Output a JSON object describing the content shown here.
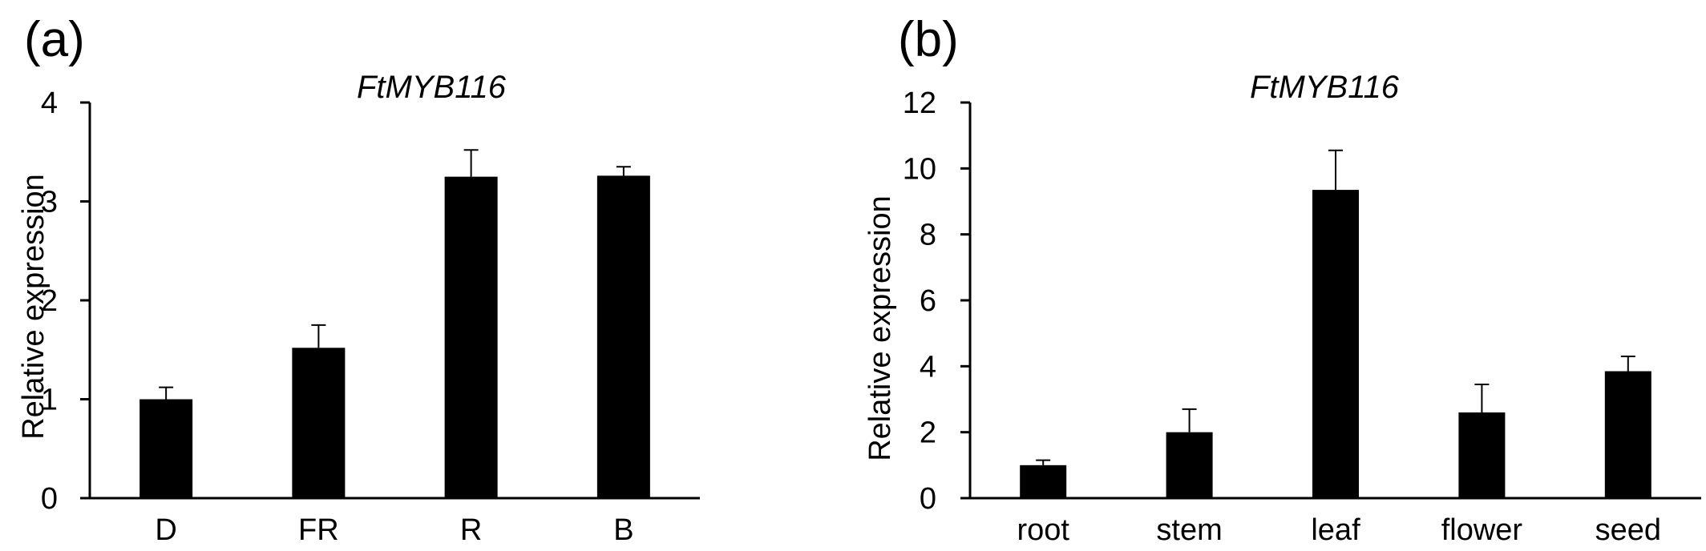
{
  "chart_data": [
    {
      "panel": "(a)",
      "type": "bar",
      "title": "FtMYB116",
      "xlabel": "",
      "ylabel": "Relative expression",
      "categories": [
        "D",
        "FR",
        "R",
        "B"
      ],
      "values": [
        1.0,
        1.52,
        3.25,
        3.26
      ],
      "errors": [
        0.12,
        0.23,
        0.27,
        0.09
      ],
      "ylim": [
        0,
        4
      ],
      "yticks": [
        0,
        1,
        2,
        3,
        4
      ],
      "grid": false,
      "bar_color": "#000000"
    },
    {
      "panel": "(b)",
      "type": "bar",
      "title": "FtMYB116",
      "xlabel": "",
      "ylabel": "Relative expression",
      "categories": [
        "root",
        "stem",
        "leaf",
        "flower",
        "seed"
      ],
      "values": [
        1.0,
        2.0,
        9.35,
        2.6,
        3.85
      ],
      "errors": [
        0.15,
        0.7,
        1.2,
        0.85,
        0.45
      ],
      "ylim": [
        0,
        12
      ],
      "yticks": [
        0,
        2,
        4,
        6,
        8,
        10,
        12
      ],
      "grid": false,
      "bar_color": "#000000"
    }
  ]
}
